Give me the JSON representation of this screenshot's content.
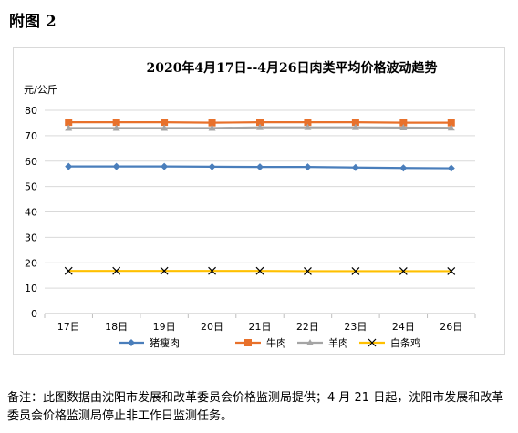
{
  "figure_label": "附图 2",
  "note": "备注：此图数据由沈阳市发展和改革委员会价格监测局提供；4 月 21 日起，沈阳市发展和改革委员会价格监测局停止非工作日监测任务。",
  "chart_data": {
    "type": "line",
    "title": "2020年4月17日--4月26日肉类平均价格波动趋势",
    "ylabel": "元/公斤",
    "xlabel": "",
    "ylim": [
      0,
      80
    ],
    "yticks": [
      0,
      10,
      20,
      30,
      40,
      50,
      60,
      70,
      80
    ],
    "categories": [
      "17日",
      "18日",
      "19日",
      "20日",
      "21日",
      "22日",
      "23日",
      "24日",
      "26日"
    ],
    "grid": "horizontal",
    "legend_position": "bottom",
    "series": [
      {
        "name": "猪瘦肉",
        "color": "#4a7ebb",
        "marker": "diamond",
        "values": [
          57.9,
          57.9,
          57.9,
          57.8,
          57.7,
          57.7,
          57.5,
          57.3,
          57.2
        ]
      },
      {
        "name": "牛肉",
        "color": "#e8712b",
        "marker": "square",
        "values": [
          75.3,
          75.3,
          75.3,
          75.1,
          75.3,
          75.3,
          75.3,
          75.1,
          75.1
        ]
      },
      {
        "name": "羊肉",
        "color": "#a5a5a5",
        "marker": "triangle",
        "values": [
          73.0,
          73.0,
          73.0,
          73.0,
          73.3,
          73.3,
          73.3,
          73.2,
          73.1
        ]
      },
      {
        "name": "白条鸡",
        "color": "#ffc000",
        "marker": "x",
        "values": [
          16.8,
          16.8,
          16.8,
          16.8,
          16.8,
          16.7,
          16.7,
          16.7,
          16.7
        ]
      }
    ]
  }
}
